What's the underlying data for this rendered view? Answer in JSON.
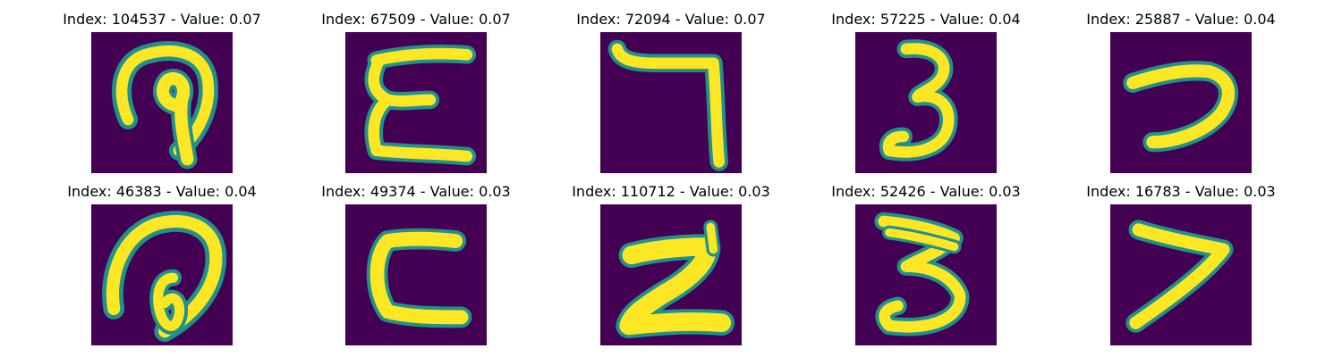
{
  "figure": {
    "colormap": {
      "background": "#440154",
      "edge": "#21918c",
      "mid": "#5ec962",
      "stroke": "#fde725"
    },
    "panels": [
      {
        "title": "Index: 104537 - Value: 0.07",
        "glyph": "handwritten-glyph-loop-with-tail"
      },
      {
        "title": "Index: 67509 - Value: 0.07",
        "glyph": "handwritten-glyph-E-shape"
      },
      {
        "title": "Index: 72094 - Value: 0.07",
        "glyph": "handwritten-glyph-seven"
      },
      {
        "title": "Index: 57225 - Value: 0.04",
        "glyph": "handwritten-glyph-three"
      },
      {
        "title": "Index: 25887 - Value: 0.04",
        "glyph": "handwritten-glyph-hook"
      },
      {
        "title": "Index: 46383 - Value: 0.04",
        "glyph": "handwritten-glyph-loop-with-inner-curl"
      },
      {
        "title": "Index: 49374 - Value: 0.03",
        "glyph": "handwritten-glyph-C-shape"
      },
      {
        "title": "Index: 110712 - Value: 0.03",
        "glyph": "handwritten-glyph-Z-shape"
      },
      {
        "title": "Index: 52426 - Value: 0.03",
        "glyph": "handwritten-glyph-three"
      },
      {
        "title": "Index: 16783 - Value: 0.03",
        "glyph": "handwritten-glyph-greater-than"
      }
    ]
  }
}
